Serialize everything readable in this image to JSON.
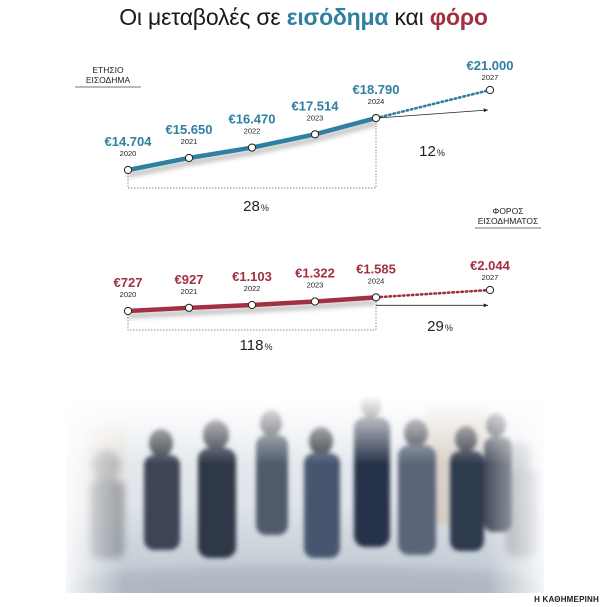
{
  "title": {
    "part1": "Οι μεταβολές σε ",
    "income_word": "εισόδημα",
    "part2": " και ",
    "tax_word": "φόρο"
  },
  "colors": {
    "income": "#2e7fa0",
    "tax": "#a33042",
    "title_text": "#1a1a1a"
  },
  "credit": "Η ΚΑΘΗΜΕΡΙΝΗ",
  "chart_data": [
    {
      "type": "line",
      "label_lines": [
        "ΕΤΗΣΙΟ",
        "ΕΙΣΟΔΗΜΑ"
      ],
      "x": [
        "2020",
        "2021",
        "2022",
        "2023",
        "2024",
        "2027"
      ],
      "values": [
        14704,
        15650,
        16470,
        17514,
        18790,
        21000
      ],
      "value_labels": [
        "€14.704",
        "€15.650",
        "€16.470",
        "€17.514",
        "€18.790",
        "€21.000"
      ],
      "projected_from_index": 4,
      "changes": [
        {
          "from": "2020",
          "to": "2024",
          "number": "28",
          "unit": "%"
        },
        {
          "from": "2024",
          "to": "2027",
          "number": "12",
          "unit": "%"
        }
      ]
    },
    {
      "type": "line",
      "label_lines": [
        "ΦΟΡΟΣ",
        "ΕΙΣΟΔΗΜΑΤΟΣ"
      ],
      "x": [
        "2020",
        "2021",
        "2022",
        "2023",
        "2024",
        "2027"
      ],
      "values": [
        727,
        927,
        1103,
        1322,
        1585,
        2044
      ],
      "value_labels": [
        "€727",
        "€927",
        "€1.103",
        "€1.322",
        "€1.585",
        "€2.044"
      ],
      "projected_from_index": 4,
      "changes": [
        {
          "from": "2020",
          "to": "2024",
          "number": "118",
          "unit": "%"
        },
        {
          "from": "2024",
          "to": "2027",
          "number": "29",
          "unit": "%"
        }
      ]
    }
  ]
}
